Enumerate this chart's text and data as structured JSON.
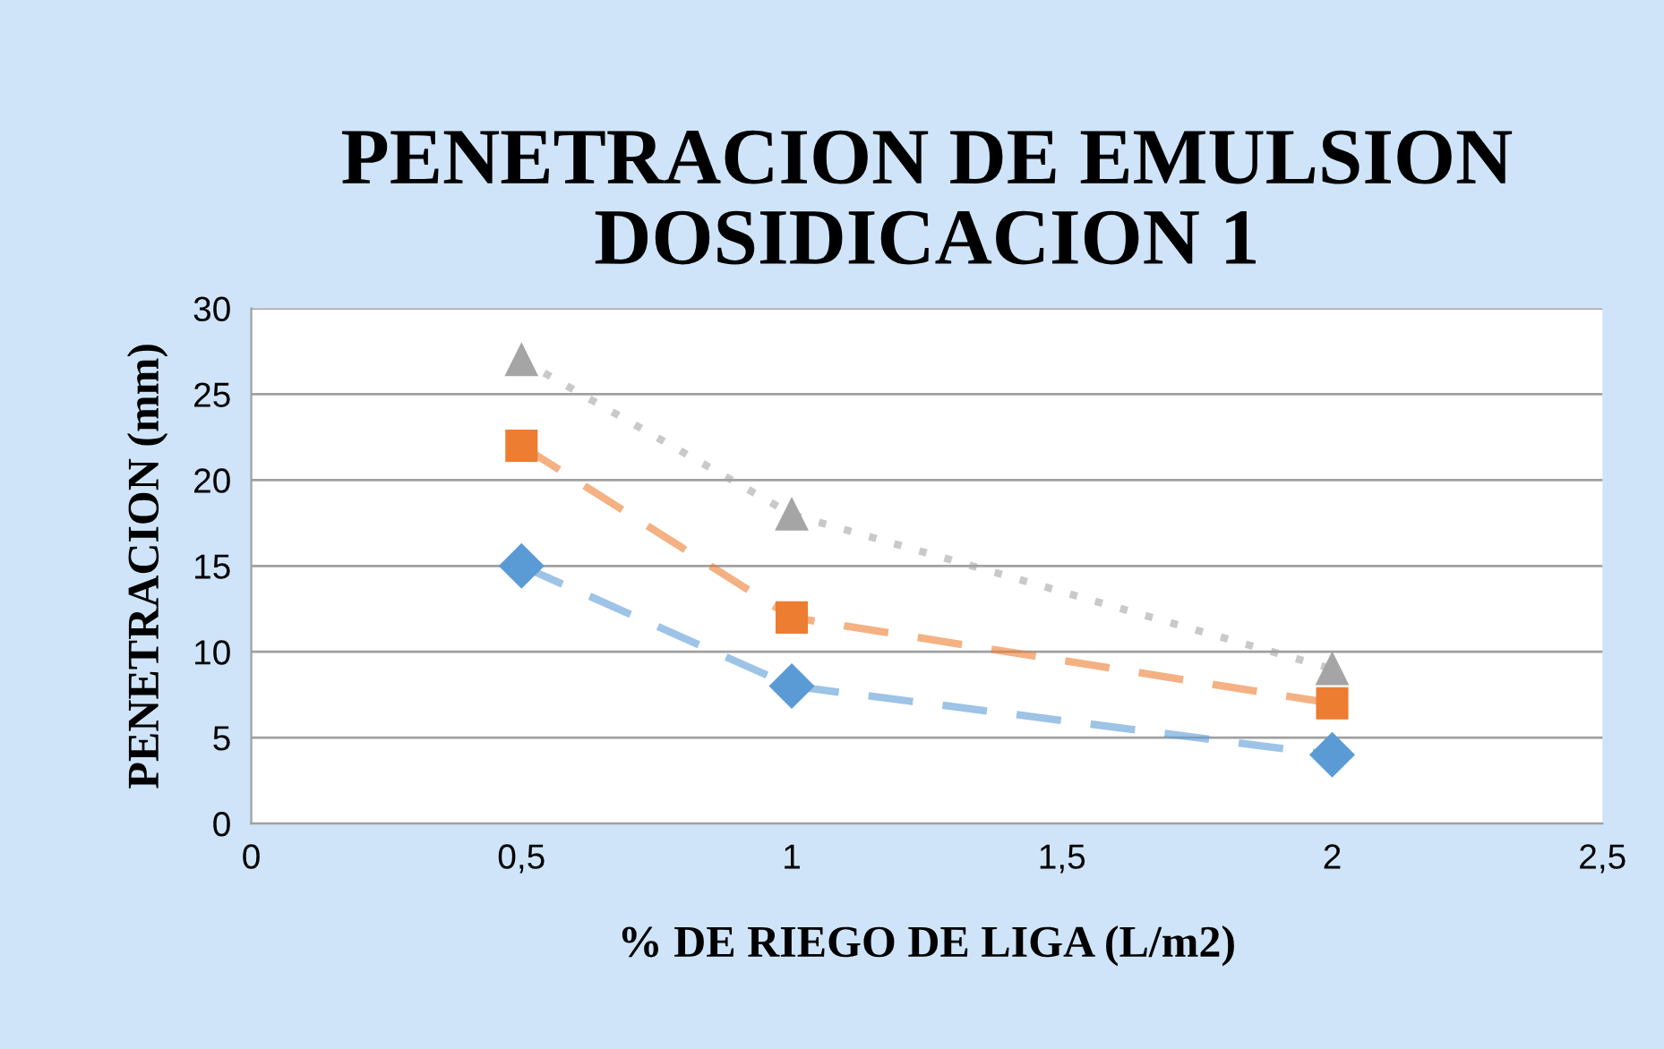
{
  "chart_data": {
    "type": "line",
    "title": "PENETRACION DE EMULSION\nDOSIDICACION 1",
    "xlabel": "% DE RIEGO DE LIGA (L/m2)",
    "ylabel": "PENETRACION (mm)",
    "x": [
      0.5,
      1,
      2
    ],
    "series": [
      {
        "color": "#a5a5a5",
        "values": [
          27,
          18,
          9
        ],
        "marker": "triangle",
        "line_style": "dotted"
      },
      {
        "color": "#ed7d31",
        "values": [
          22,
          12,
          7
        ],
        "marker": "square",
        "line_style": "dashed"
      },
      {
        "color": "#5b9bd5",
        "values": [
          15,
          8,
          4
        ],
        "marker": "diamond",
        "line_style": "dashed"
      }
    ],
    "xlim": [
      0,
      2.5
    ],
    "xticks": [
      0,
      {
        "value": 0.5,
        "label": "0,5"
      },
      1,
      {
        "value": 1.5,
        "label": "1,5"
      },
      2,
      {
        "value": 2.5,
        "label": "2,5"
      }
    ],
    "ylim": [
      0,
      30
    ],
    "yticks": [
      0,
      5,
      10,
      15,
      20,
      25,
      30
    ],
    "grid": "y",
    "legend": false
  }
}
